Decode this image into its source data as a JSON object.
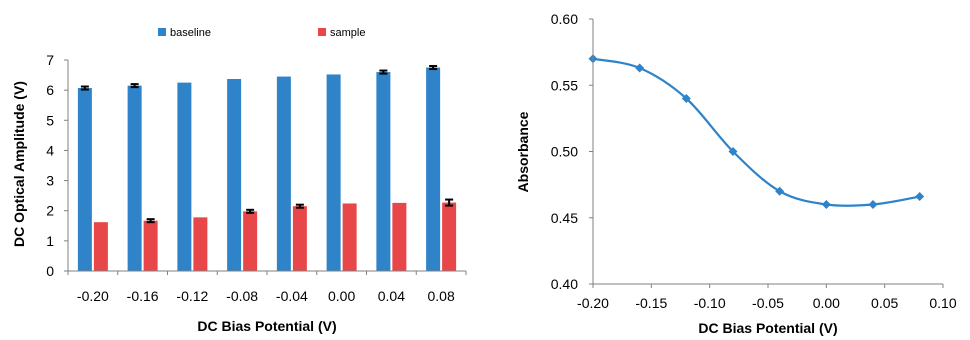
{
  "colors": {
    "baseline": "#2F83C8",
    "sample": "#E8474A",
    "line": "#2F83C8",
    "axis": "#808080",
    "error_bar": "#000000"
  },
  "chart_data": [
    {
      "type": "bar",
      "title": "",
      "xlabel": "DC Bias Potential (V)",
      "ylabel": "DC Optical Amplitude (V)",
      "categories": [
        "-0.20",
        "-0.16",
        "-0.12",
        "-0.08",
        "-0.04",
        "0.00",
        "0.04",
        "0.08"
      ],
      "ylim": [
        0,
        7
      ],
      "yticks": [
        "0",
        "1",
        "2",
        "3",
        "4",
        "5",
        "6",
        "7"
      ],
      "legend": "top",
      "grid": false,
      "series": [
        {
          "name": "baseline",
          "values": [
            6.07,
            6.15,
            6.25,
            6.37,
            6.45,
            6.52,
            6.6,
            6.75
          ],
          "error": [
            0.05,
            0.05,
            0,
            0,
            0,
            0,
            0.05,
            0.05
          ]
        },
        {
          "name": "sample",
          "values": [
            1.62,
            1.67,
            1.78,
            1.98,
            2.15,
            2.24,
            2.26,
            2.27
          ],
          "error": [
            0,
            0.05,
            0,
            0.05,
            0.05,
            0,
            0,
            0.1
          ]
        }
      ]
    },
    {
      "type": "line",
      "title": "",
      "xlabel": "DC Bias Potential (V)",
      "ylabel": "Absorbance",
      "xlim": [
        -0.2,
        0.1
      ],
      "ylim": [
        0.4,
        0.6
      ],
      "xticks": [
        "-0.20",
        "-0.15",
        "-0.10",
        "-0.05",
        "0.00",
        "0.05",
        "0.10"
      ],
      "yticks": [
        "0.40",
        "0.45",
        "0.50",
        "0.55",
        "0.60"
      ],
      "grid": false,
      "series": [
        {
          "x": [
            -0.2,
            -0.16,
            -0.12,
            -0.08,
            -0.04,
            0.0,
            0.04,
            0.08
          ],
          "y": [
            0.57,
            0.563,
            0.54,
            0.5,
            0.47,
            0.46,
            0.46,
            0.466
          ]
        }
      ]
    }
  ]
}
